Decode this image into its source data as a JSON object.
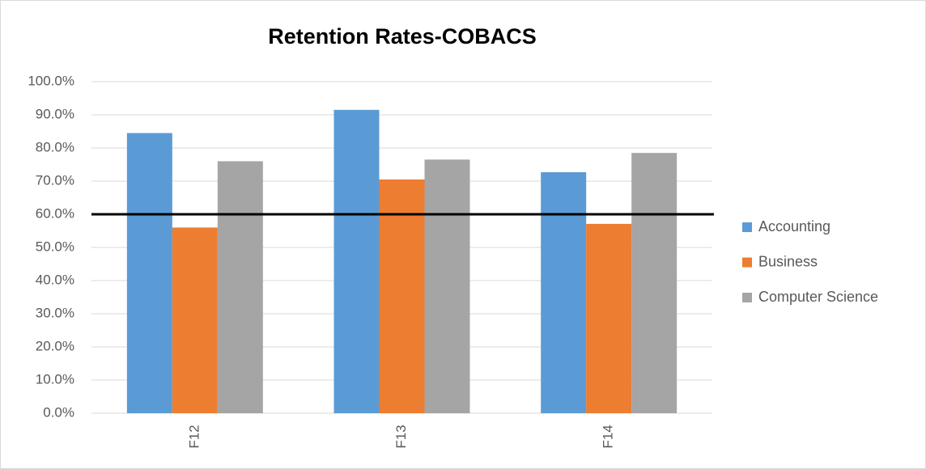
{
  "chart_data": {
    "type": "bar",
    "title": "Retention Rates-COBACS",
    "categories": [
      "F12",
      "F13",
      "F14"
    ],
    "series": [
      {
        "name": "Accounting",
        "color": "#5b9bd5",
        "values": [
          84.5,
          91.5,
          72.7
        ]
      },
      {
        "name": "Business",
        "color": "#ed7d31",
        "values": [
          56,
          70.5,
          57.1
        ]
      },
      {
        "name": "Computer Science",
        "color": "#a5a5a5",
        "values": [
          76,
          76.5,
          78.5
        ]
      }
    ],
    "reference_line": 60,
    "ylim": [
      0,
      100
    ],
    "yticks": [
      {
        "value": 0,
        "label": "0.0%"
      },
      {
        "value": 10,
        "label": "10.0%"
      },
      {
        "value": 20,
        "label": "20.0%"
      },
      {
        "value": 30,
        "label": "30.0%"
      },
      {
        "value": 40,
        "label": "40.0%"
      },
      {
        "value": 50,
        "label": "50.0%"
      },
      {
        "value": 60,
        "label": "60.0%"
      },
      {
        "value": 70,
        "label": "70.0%"
      },
      {
        "value": 80,
        "label": "80.0%"
      },
      {
        "value": 90,
        "label": "90.0%"
      },
      {
        "value": 100,
        "label": "100.0%"
      }
    ],
    "grid": true,
    "legend": "right"
  }
}
